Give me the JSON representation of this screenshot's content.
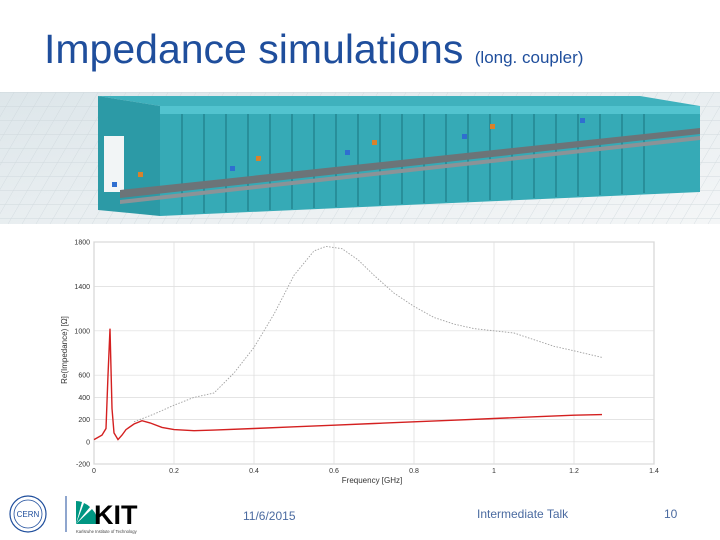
{
  "slide": {
    "title": "Impedance simulations",
    "subtitle": "(long. coupler)",
    "date": "11/6/2015",
    "talk": "Intermediate Talk",
    "page": "10",
    "logos": {
      "cern": "CERN",
      "kit": "KIT",
      "kit_tagline": "Karlsruhe Institute of Technology"
    }
  },
  "chart_data": {
    "type": "line",
    "xlabel": "Frequency [GHz]",
    "ylabel": "Re(Impedance) [Ω]",
    "xlim": [
      0,
      1.4
    ],
    "ylim": [
      -200,
      1800
    ],
    "xticks": [
      "0",
      "0.2",
      "0.4",
      "0.6",
      "0.8",
      "1",
      "1.2",
      "1.4"
    ],
    "yticks": [
      "-200",
      "0",
      "200",
      "400",
      "600",
      "1000",
      "1400",
      "1800"
    ],
    "ytick_values": [
      -200,
      0,
      200,
      400,
      600,
      1000,
      1400,
      1800
    ],
    "grid": true,
    "series": [
      {
        "color": "#a0a0a0",
        "style": "dotted",
        "x": [
          0.1,
          0.15,
          0.2,
          0.25,
          0.3,
          0.35,
          0.4,
          0.45,
          0.5,
          0.55,
          0.58,
          0.62,
          0.66,
          0.7,
          0.75,
          0.8,
          0.85,
          0.9,
          0.95,
          1.0,
          1.05,
          1.1,
          1.15,
          1.2,
          1.27
        ],
        "y": [
          180,
          250,
          330,
          400,
          440,
          620,
          850,
          1150,
          1500,
          1720,
          1760,
          1740,
          1640,
          1500,
          1340,
          1220,
          1120,
          1060,
          1020,
          1000,
          980,
          920,
          860,
          820,
          760
        ]
      },
      {
        "color": "#d42020",
        "style": "solid",
        "x": [
          0.0,
          0.02,
          0.03,
          0.035,
          0.04,
          0.045,
          0.05,
          0.06,
          0.07,
          0.08,
          0.1,
          0.12,
          0.14,
          0.17,
          0.2,
          0.25,
          0.3,
          0.4,
          0.5,
          0.6,
          0.7,
          0.8,
          0.9,
          1.0,
          1.1,
          1.2,
          1.27
        ],
        "y": [
          20,
          60,
          120,
          600,
          1020,
          300,
          80,
          20,
          60,
          110,
          160,
          190,
          170,
          130,
          110,
          100,
          105,
          120,
          135,
          150,
          165,
          180,
          195,
          210,
          225,
          240,
          245
        ]
      }
    ]
  }
}
